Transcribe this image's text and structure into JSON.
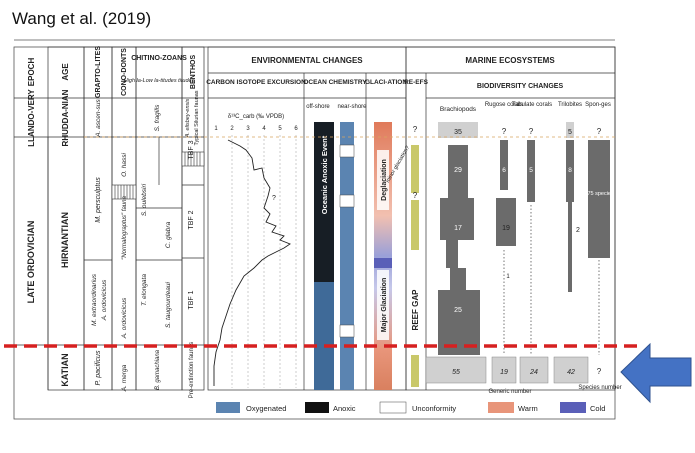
{
  "citation": "Wang et al. (2019)",
  "columns": {
    "epoch": "EPOCH",
    "age": "AGE",
    "graptolites": "GRAPTO-LITES",
    "conodonts": "CONO-DONTS",
    "chitinozoans": "CHITINO-ZOANS",
    "benthos": "BENTHOS"
  },
  "units": {
    "llandovery": "LLANDO-VERY",
    "rhuddanian": "RHUDDA-NIAN",
    "late_ordovician": "LATE ORDOVICIAN",
    "hirnantian": "HIRNANTIAN",
    "katian": "KATIAN"
  },
  "zones": {
    "graptolites": [
      "A. ascen-sus",
      "M. persculptus",
      "M. extraordinarius",
      "A. ordovicicus",
      "P. pacificus"
    ],
    "conodonts": [
      "O. hassi",
      "\"Normalograptus\" fauna",
      "A. ordovicicus",
      "A. merga"
    ],
    "chitinozoans": [
      "S. fragilis",
      "High la-Low la-titudes titudes",
      "S. oulebsiri",
      "C. glabra",
      "T. elongata",
      "S. taugourdeaui",
      "B. gamachiana"
    ],
    "benthos": [
      "Typical Silurian faunas",
      "A. elisbey-ensis",
      "TBF 3",
      "TBF 2",
      "TBF 1",
      "Pre-extinction faunas"
    ]
  },
  "env": {
    "header": "ENVIRONMENTAL CHANGES",
    "carbon_title": "CARBON ISOTOPE EXCURSION",
    "carbon_axis": "δ¹³C_carb (‰ VPDB)",
    "carbon_ticks": [
      "1",
      "2",
      "3",
      "4",
      "5",
      "6"
    ],
    "ocean_title": "OCEAN CHEMISTRY",
    "offshore": "off-shore",
    "nearshore": "near-shore",
    "oae": "Oceanic Anoxic Event",
    "glaciation_title": "GLACI-ATION",
    "deglaciation": "Deglaciation",
    "minor_glaciation": "minor glaciation?",
    "major_glaciation": "Major Glaciation"
  },
  "marine": {
    "header": "MARINE ECOSYSTEMS",
    "reefs_title": "RE-EFS",
    "biodiversity": "BIODIVERSITY CHANGES",
    "reef_gap": "REEF GAP",
    "taxa": [
      "Brachiopods",
      "Rugose corals",
      "Tabulate corals",
      "Trilobites",
      "Spon-ges"
    ],
    "top_counts": [
      "35",
      "?",
      "?",
      "5",
      "?"
    ],
    "hirnantian_counts": [
      "29",
      "6",
      "5",
      "8",
      ">75 species"
    ],
    "tbf2_counts": [
      "17",
      "19",
      "2"
    ],
    "tbf1_counts": [
      "25",
      "1",
      "3"
    ],
    "katian_counts": [
      "55",
      "19",
      "24",
      "42",
      "?"
    ],
    "generic_number": "Generic number",
    "species_number": "Species number",
    "question": "?"
  },
  "legend": [
    {
      "label": "Oxygenated",
      "color": "#5b84b1"
    },
    {
      "label": "Anoxic",
      "color": "#111111"
    },
    {
      "label": "Unconformity",
      "color": "#ffffff"
    },
    {
      "label": "Warm",
      "color": "#e8957a"
    },
    {
      "label": "Cold",
      "color": "#5a5fb8"
    }
  ],
  "colors": {
    "boundary_line": "#d62020",
    "arrow": "#4472c4",
    "bars": "#6b6b6b",
    "reef_bar": "#c9c86a",
    "guide_line": "#d9a560"
  }
}
